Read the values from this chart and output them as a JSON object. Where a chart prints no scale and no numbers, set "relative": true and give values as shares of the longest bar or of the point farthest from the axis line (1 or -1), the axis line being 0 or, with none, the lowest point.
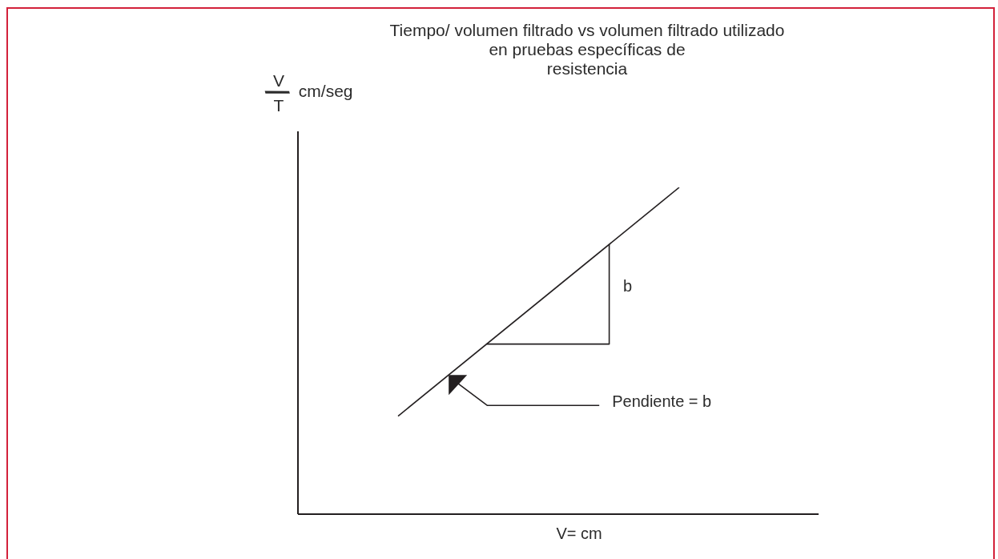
{
  "chart_data": {
    "type": "line",
    "title": "Tiempo/ volumen filtrado vs volumen filtrado utilizado\nen pruebas específicas de\nresistencia",
    "xlabel": "V= cm",
    "ylabel": "V/T cm/seg",
    "categories": [
      null,
      null
    ],
    "relative": true,
    "series": [
      {
        "color": "#231f20",
        "values": [
          0.3,
          1
        ]
      }
    ],
    "annotations": [
      "b",
      "Pendiente = b"
    ]
  }
}
